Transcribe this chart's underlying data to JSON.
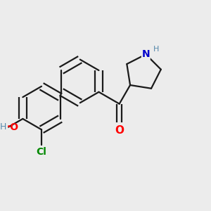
{
  "background_color": "#ececec",
  "bond_color": "#1a1a1a",
  "atom_colors": {
    "O": "#ff0000",
    "N": "#0000cc",
    "Cl": "#008800",
    "H": "#5588aa"
  },
  "line_width": 1.6,
  "figsize": [
    3.0,
    3.0
  ],
  "dpi": 100
}
